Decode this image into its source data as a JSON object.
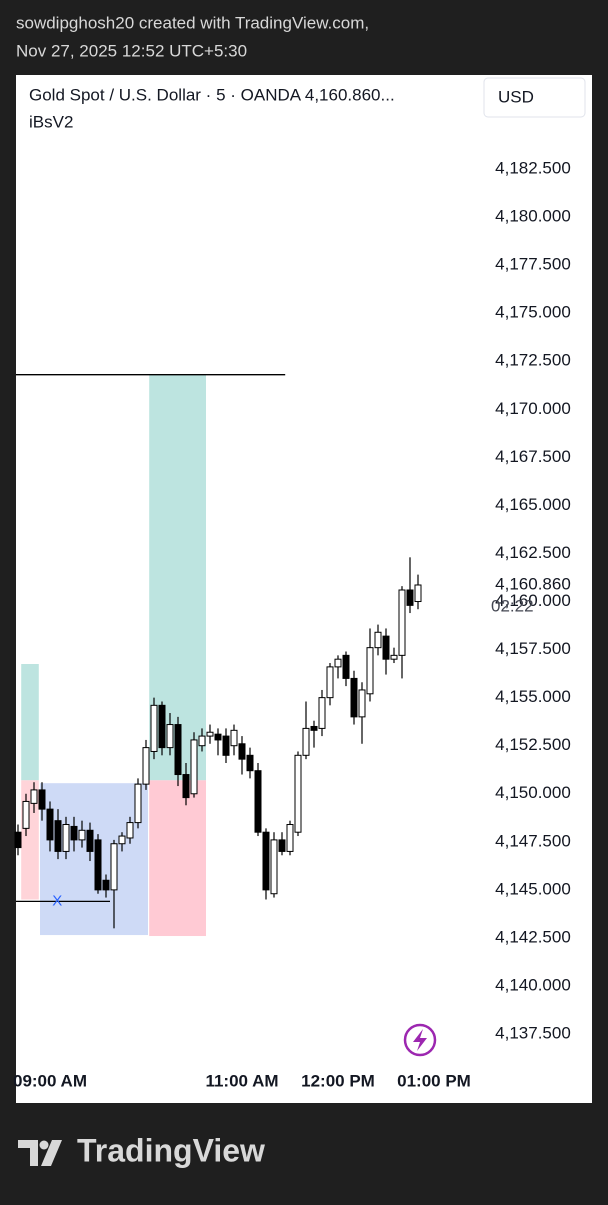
{
  "header": {
    "line1": "sowdipghosh20 created with TradingView.com,",
    "line2": "Nov 27, 2025 12:52 UTC+5:30"
  },
  "footer": {
    "brand": "TradingView"
  },
  "chart_data": {
    "type": "candlestick",
    "title": "Gold Spot / U.S. Dollar · 5 · OANDA  4,160.860...",
    "indicator": "iBsV2",
    "currency": "USD",
    "up_color": "#ffffff",
    "down_color": "#000000",
    "outline_color": "#000000",
    "open": [
      4148.0,
      4148.2,
      4149.5,
      4150.2,
      4149.2,
      4148.6,
      4147.0,
      4148.3,
      4147.6,
      4148.1,
      4147.6,
      4145.5,
      4145.0,
      4147.4,
      4147.7,
      4148.5,
      4150.5,
      4152.2,
      4154.6,
      4152.4,
      4153.6,
      4151.0,
      4150.0,
      4152.5,
      4153.0,
      4153.1,
      4153.0,
      4152.5,
      4152.6,
      4152.0,
      4151.2,
      4148.0,
      4144.8,
      4147.6,
      4147.0,
      4148.0,
      4152.0,
      4153.5,
      4153.4,
      4155.0,
      4156.6,
      4157.2,
      4156.0,
      4154.0,
      4155.2,
      4157.6,
      4158.2,
      4157.0,
      4157.2,
      4160.6,
      4160.0
    ],
    "high": [
      4148.4,
      4150.0,
      4150.6,
      4150.6,
      4149.6,
      4149.2,
      4148.8,
      4148.8,
      4148.6,
      4148.5,
      4147.9,
      4145.8,
      4147.6,
      4148.0,
      4148.8,
      4150.8,
      4152.8,
      4155.0,
      4154.8,
      4154.2,
      4154.0,
      4151.6,
      4153.2,
      4153.4,
      4153.6,
      4153.4,
      4153.4,
      4153.6,
      4153.0,
      4152.4,
      4151.6,
      4148.2,
      4148.0,
      4148.0,
      4148.6,
      4152.2,
      4154.8,
      4153.8,
      4155.4,
      4156.8,
      4157.2,
      4157.4,
      4156.4,
      4155.8,
      4158.6,
      4158.8,
      4158.6,
      4157.6,
      4160.8,
      4162.3,
      4161.4
    ],
    "low": [
      4146.8,
      4147.8,
      4149.0,
      4148.6,
      4147.0,
      4146.6,
      4146.6,
      4147.0,
      4147.2,
      4146.5,
      4144.8,
      4144.6,
      4143.0,
      4147.0,
      4147.4,
      4148.2,
      4150.2,
      4151.8,
      4152.0,
      4152.0,
      4150.4,
      4149.4,
      4149.8,
      4152.2,
      4152.6,
      4152.0,
      4151.6,
      4152.0,
      4151.0,
      4150.8,
      4147.8,
      4144.5,
      4144.6,
      4146.8,
      4146.8,
      4147.8,
      4151.8,
      4152.4,
      4153.0,
      4154.6,
      4156.0,
      4155.6,
      4153.6,
      4152.6,
      4154.8,
      4157.2,
      4156.2,
      4156.8,
      4156.0,
      4159.4,
      4159.6
    ],
    "close": [
      4147.2,
      4149.6,
      4150.2,
      4149.2,
      4147.6,
      4147.0,
      4148.4,
      4147.6,
      4148.1,
      4147.0,
      4145.0,
      4145.0,
      4147.4,
      4147.8,
      4148.5,
      4150.5,
      4152.4,
      4154.6,
      4152.4,
      4153.6,
      4151.0,
      4149.8,
      4152.8,
      4153.0,
      4153.2,
      4152.8,
      4152.0,
      4153.3,
      4151.8,
      4151.2,
      4148.0,
      4145.0,
      4147.6,
      4147.0,
      4148.4,
      4152.0,
      4153.4,
      4153.3,
      4155.0,
      4156.6,
      4157.0,
      4156.0,
      4154.0,
      4155.4,
      4157.6,
      4158.4,
      4157.0,
      4157.2,
      4160.6,
      4159.8,
      4160.86
    ],
    "xlim": [
      -0.25,
      58.375
    ],
    "xticks": [
      {
        "value": 4,
        "label": "09:00 AM"
      },
      {
        "value": 28,
        "label": "11:00 AM"
      },
      {
        "value": 40,
        "label": "12:00 PM"
      },
      {
        "value": 52,
        "label": "01:00 PM"
      }
    ],
    "ylim": [
      4136.15,
      4187.39
    ],
    "yticks": [
      {
        "value": 4137.5,
        "label": "4,137.500"
      },
      {
        "value": 4140,
        "label": "4,140.000"
      },
      {
        "value": 4142.5,
        "label": "4,142.500"
      },
      {
        "value": 4145,
        "label": "4,145.000"
      },
      {
        "value": 4147.5,
        "label": "4,147.500"
      },
      {
        "value": 4150,
        "label": "4,150.000"
      },
      {
        "value": 4152.5,
        "label": "4,152.500"
      },
      {
        "value": 4155,
        "label": "4,155.000"
      },
      {
        "value": 4157.5,
        "label": "4,157.500"
      },
      {
        "value": 4160,
        "label": "4,160.000"
      },
      {
        "value": 4162.5,
        "label": "4,162.500"
      },
      {
        "value": 4165,
        "label": "4,165.000"
      },
      {
        "value": 4167.5,
        "label": "4,167.500"
      },
      {
        "value": 4170,
        "label": "4,170.000"
      },
      {
        "value": 4172.5,
        "label": "4,172.500"
      },
      {
        "value": 4175,
        "label": "4,175.000"
      },
      {
        "value": 4177.5,
        "label": "4,177.500"
      },
      {
        "value": 4180,
        "label": "4,180.000"
      },
      {
        "value": 4182.5,
        "label": "4,182.500"
      }
    ],
    "last_price": {
      "value": 4160.86,
      "label": "4,160.860"
    },
    "countdown": "02:22",
    "zones": [
      {
        "x": [
          0.4,
          2.6
        ],
        "y": [
          4150.7,
          4156.75
        ],
        "color": "#b2dfdb"
      },
      {
        "x": [
          0.4,
          2.6
        ],
        "y": [
          4144.5,
          4150.7
        ],
        "color": "#ffcdd2"
      },
      {
        "x": [
          2.75,
          16.25
        ],
        "y": [
          4142.65,
          4150.55
        ],
        "color": "#c5d3f5"
      },
      {
        "x": [
          16.4,
          23.5
        ],
        "y": [
          4150.7,
          4171.8
        ],
        "color": "#b2dfdb"
      },
      {
        "x": [
          16.4,
          23.5
        ],
        "y": [
          4142.6,
          4150.7
        ],
        "color": "#ffc1cc"
      }
    ],
    "lines": [
      {
        "x": [
          -0.25,
          33.4
        ],
        "y": 4171.8,
        "color": "#000000"
      },
      {
        "x": [
          -0.25,
          11.5
        ],
        "y": 4144.4,
        "color": "#000000"
      }
    ],
    "marker": {
      "text": "X",
      "x": 4.9,
      "y": 4144.4,
      "color": "#2962ff"
    }
  }
}
